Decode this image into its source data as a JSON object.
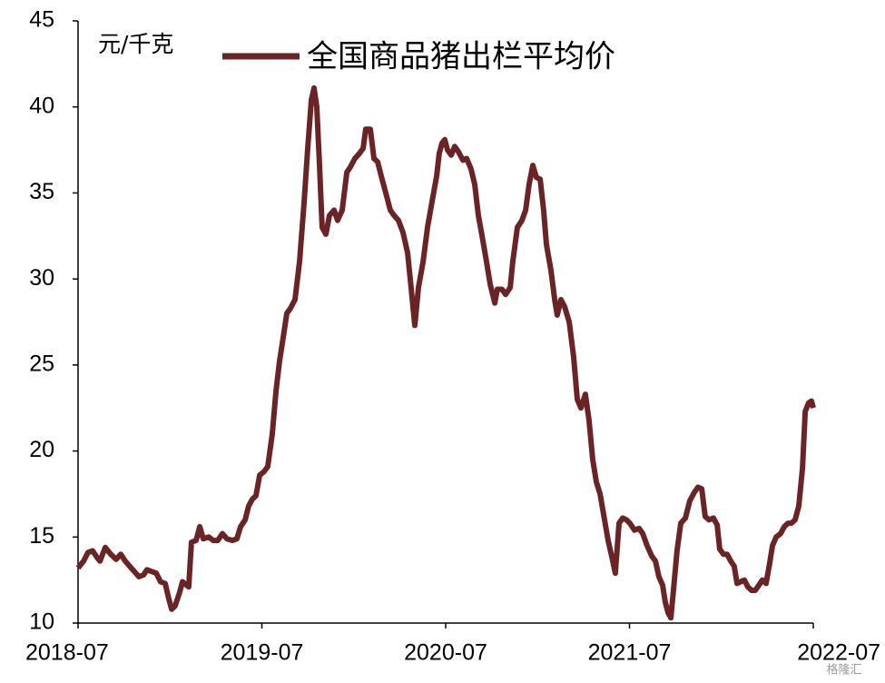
{
  "chart_data": {
    "type": "line",
    "y_label": "元/千克",
    "watermark": "格隆汇",
    "x": [
      2018.5,
      2018.53,
      2018.554,
      2018.579,
      2018.604,
      2018.619,
      2018.648,
      2018.678,
      2018.707,
      2018.732,
      2018.757,
      2018.781,
      2018.806,
      2018.831,
      2018.856,
      2018.875,
      2018.9,
      2018.925,
      2018.949,
      2018.974,
      2018.994,
      2019.009,
      2019.028,
      2019.053,
      2019.068,
      2019.102,
      2019.117,
      2019.142,
      2019.162,
      2019.181,
      2019.211,
      2019.236,
      2019.26,
      2019.285,
      2019.31,
      2019.34,
      2019.364,
      2019.384,
      2019.409,
      2019.428,
      2019.448,
      2019.468,
      2019.488,
      2019.512,
      2019.532,
      2019.557,
      2019.577,
      2019.596,
      2019.616,
      2019.636,
      2019.656,
      2019.68,
      2019.705,
      2019.73,
      2019.749,
      2019.769,
      2019.784,
      2019.799,
      2019.814,
      2019.828,
      2019.848,
      2019.868,
      2019.893,
      2019.912,
      2019.937,
      2019.962,
      2019.981,
      2020.006,
      2020.031,
      2020.051,
      2020.065,
      2020.09,
      2020.11,
      2020.13,
      2020.149,
      2020.174,
      2020.199,
      2020.219,
      2020.243,
      2020.268,
      2020.293,
      2020.312,
      2020.332,
      2020.352,
      2020.377,
      2020.401,
      2020.426,
      2020.451,
      2020.465,
      2020.48,
      2020.495,
      2020.51,
      2020.53,
      2020.549,
      2020.569,
      2020.594,
      2020.614,
      2020.638,
      2020.658,
      2020.678,
      2020.698,
      2020.722,
      2020.742,
      2020.767,
      2020.781,
      2020.806,
      2020.826,
      2020.851,
      2020.865,
      2020.89,
      2020.915,
      2020.935,
      2020.954,
      2020.974,
      2020.994,
      2021.014,
      2021.033,
      2021.048,
      2021.073,
      2021.093,
      2021.107,
      2021.127,
      2021.147,
      2021.172,
      2021.196,
      2021.216,
      2021.236,
      2021.26,
      2021.28,
      2021.3,
      2021.32,
      2021.34,
      2021.364,
      2021.384,
      2021.409,
      2021.423,
      2021.443,
      2021.463,
      2021.483,
      2021.502,
      2021.527,
      2021.552,
      2021.572,
      2021.596,
      2021.621,
      2021.641,
      2021.66,
      2021.68,
      2021.695,
      2021.71,
      2021.725,
      2021.74,
      2021.759,
      2021.779,
      2021.804,
      2021.828,
      2021.853,
      2021.873,
      2021.893,
      2021.912,
      2021.932,
      2021.957,
      2021.977,
      2021.991,
      2022.011,
      2022.031,
      2022.051,
      2022.07,
      2022.085,
      2022.105,
      2022.125,
      2022.144,
      2022.164,
      2022.184,
      2022.204,
      2022.223,
      2022.243,
      2022.263,
      2022.278,
      2022.298,
      2022.322,
      2022.342,
      2022.362,
      2022.381,
      2022.401,
      2022.421,
      2022.441,
      2022.456,
      2022.475,
      2022.49,
      2022.5
    ],
    "series": [
      {
        "name": "全国商品猪出栏平均价",
        "color": "#6b2426",
        "values": [
          13.2,
          13.6,
          14.1,
          14.2,
          13.8,
          13.6,
          14.4,
          14.0,
          13.7,
          14.0,
          13.6,
          13.3,
          13.0,
          12.7,
          12.8,
          13.1,
          13.0,
          12.9,
          12.4,
          12.3,
          11.4,
          10.8,
          11.0,
          11.8,
          12.4,
          12.1,
          14.7,
          14.8,
          15.6,
          14.9,
          15.0,
          14.8,
          14.8,
          15.2,
          14.9,
          14.8,
          14.9,
          15.6,
          16.0,
          16.8,
          17.2,
          17.4,
          18.6,
          18.8,
          19.1,
          21.0,
          23.5,
          25.2,
          26.6,
          28.0,
          28.3,
          28.8,
          31.0,
          34.5,
          37.5,
          40.4,
          41.1,
          40.0,
          36.5,
          33.0,
          32.6,
          33.7,
          34.0,
          33.4,
          34.0,
          36.2,
          36.5,
          37.0,
          37.3,
          37.6,
          38.7,
          38.7,
          37.0,
          36.8,
          36.0,
          35.0,
          34.0,
          33.7,
          33.4,
          32.7,
          31.5,
          29.5,
          27.3,
          29.5,
          31.0,
          33.0,
          34.5,
          36.0,
          37.3,
          37.9,
          38.1,
          37.5,
          37.2,
          37.7,
          37.4,
          36.9,
          37.0,
          36.4,
          35.5,
          33.7,
          32.5,
          31.0,
          29.7,
          28.6,
          29.4,
          29.4,
          29.1,
          29.5,
          31.0,
          33.0,
          33.4,
          34.0,
          35.5,
          36.6,
          35.9,
          35.8,
          34.0,
          32.0,
          30.5,
          28.8,
          27.9,
          28.8,
          28.4,
          27.5,
          25.5,
          23.0,
          22.5,
          23.3,
          21.8,
          19.5,
          18.2,
          17.5,
          16.0,
          14.8,
          13.6,
          12.9,
          15.8,
          16.1,
          16.0,
          15.8,
          15.4,
          15.5,
          15.2,
          14.5,
          13.9,
          13.6,
          12.7,
          12.2,
          11.2,
          10.6,
          10.3,
          12.0,
          14.2,
          15.8,
          16.1,
          17.1,
          17.6,
          17.9,
          17.8,
          16.2,
          16.0,
          16.1,
          15.7,
          14.3,
          14.0,
          14.0,
          13.6,
          13.3,
          12.3,
          12.4,
          12.5,
          12.1,
          11.9,
          11.9,
          12.2,
          12.5,
          12.3,
          13.5,
          14.5,
          15.0,
          15.2,
          15.6,
          15.8,
          15.8,
          16.0,
          16.8,
          19.0,
          22.3,
          22.8,
          22.9,
          22.5
        ]
      }
    ],
    "xlim": [
      2018.5,
      2022.5
    ],
    "xticks": [
      {
        "value": 2018.5,
        "label": "2018-07"
      },
      {
        "value": 2019.5,
        "label": "2019-07"
      },
      {
        "value": 2020.5,
        "label": "2020-07"
      },
      {
        "value": 2021.5,
        "label": "2021-07"
      },
      {
        "value": 2022.5,
        "label": "2022-07"
      }
    ],
    "ylim": [
      10,
      45
    ],
    "yticks": [
      10,
      15,
      20,
      25,
      30,
      35,
      40,
      45
    ],
    "grid": false
  }
}
